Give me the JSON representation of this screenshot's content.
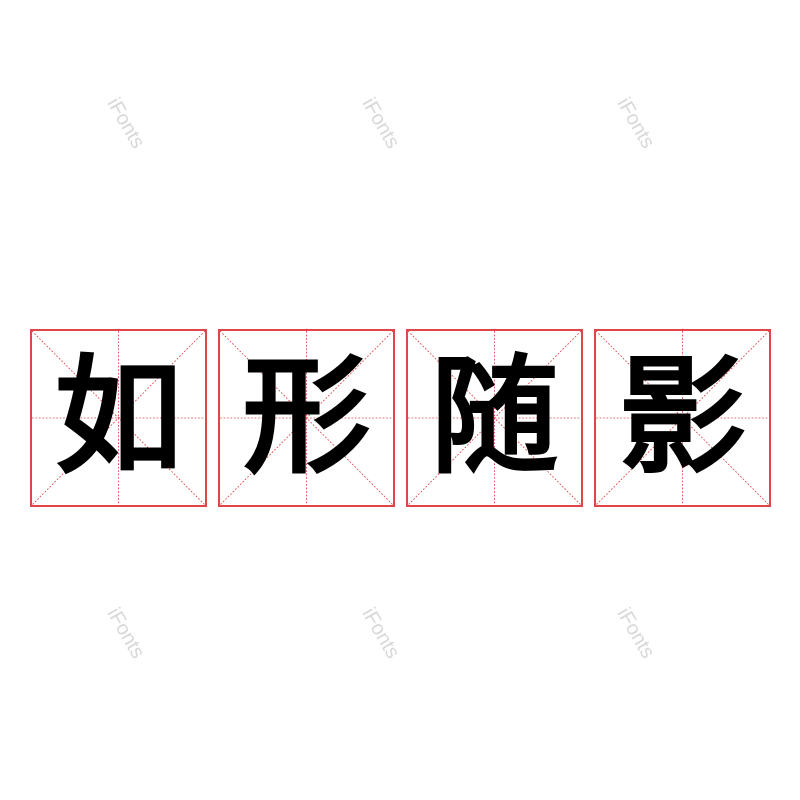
{
  "characters": [
    "如",
    "形",
    "随",
    "影"
  ],
  "watermark": "iFonts",
  "colors": {
    "grid": "#e0454a",
    "text": "#000000",
    "watermark": "#d8d8d8"
  }
}
